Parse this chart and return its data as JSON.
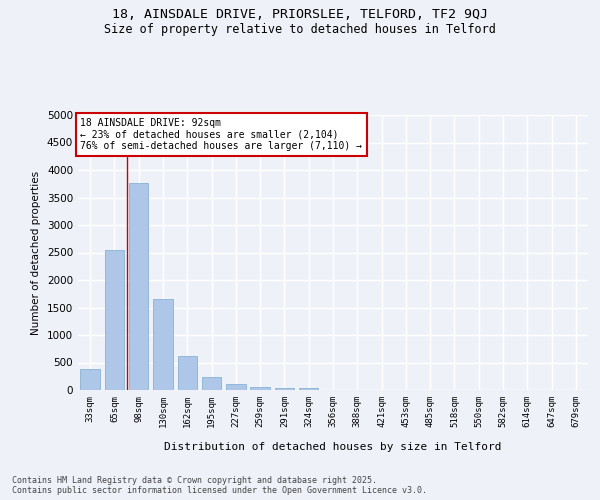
{
  "title_line1": "18, AINSDALE DRIVE, PRIORSLEE, TELFORD, TF2 9QJ",
  "title_line2": "Size of property relative to detached houses in Telford",
  "categories": [
    "33sqm",
    "65sqm",
    "98sqm",
    "130sqm",
    "162sqm",
    "195sqm",
    "227sqm",
    "259sqm",
    "291sqm",
    "324sqm",
    "356sqm",
    "388sqm",
    "421sqm",
    "453sqm",
    "485sqm",
    "518sqm",
    "550sqm",
    "582sqm",
    "614sqm",
    "647sqm",
    "679sqm"
  ],
  "values": [
    390,
    2540,
    3770,
    1650,
    610,
    240,
    110,
    55,
    30,
    30,
    0,
    0,
    0,
    0,
    0,
    0,
    0,
    0,
    0,
    0,
    0
  ],
  "bar_color": "#aec6e8",
  "bar_edge_color": "#7aabd0",
  "ylabel": "Number of detached properties",
  "xlabel": "Distribution of detached houses by size in Telford",
  "ylim": [
    0,
    5000
  ],
  "yticks": [
    0,
    500,
    1000,
    1500,
    2000,
    2500,
    3000,
    3500,
    4000,
    4500,
    5000
  ],
  "vline_color": "#cc0000",
  "annotation_title": "18 AINSDALE DRIVE: 92sqm",
  "annotation_line1": "← 23% of detached houses are smaller (2,104)",
  "annotation_line2": "76% of semi-detached houses are larger (7,110) →",
  "annotation_box_color": "#cc0000",
  "background_color": "#eef2f8",
  "grid_color": "#ffffff",
  "footer_line1": "Contains HM Land Registry data © Crown copyright and database right 2025.",
  "footer_line2": "Contains public sector information licensed under the Open Government Licence v3.0."
}
